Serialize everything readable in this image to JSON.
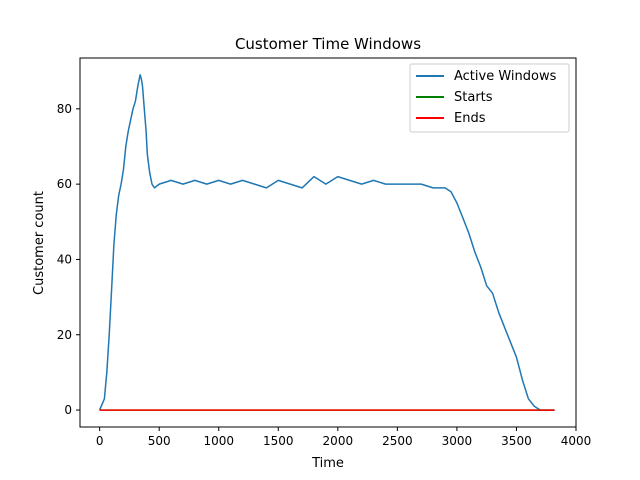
{
  "chart_data": {
    "type": "line",
    "title": "Customer Time Windows",
    "xlabel": "Time",
    "ylabel": "Customer count",
    "xlim": [
      -165,
      4000
    ],
    "ylim": [
      -4.5,
      93.5
    ],
    "xticks": [
      0,
      500,
      1000,
      1500,
      2000,
      2500,
      3000,
      3500,
      4000
    ],
    "yticks": [
      0,
      20,
      40,
      60,
      80
    ],
    "grid": false,
    "legend_position": "top-right",
    "series": [
      {
        "name": "Active Windows",
        "color": "#1f77b4",
        "x": [
          0,
          40,
          60,
          80,
          100,
          120,
          140,
          160,
          180,
          200,
          220,
          240,
          260,
          280,
          300,
          320,
          340,
          350,
          360,
          370,
          380,
          390,
          400,
          420,
          440,
          460,
          500,
          600,
          700,
          800,
          900,
          1000,
          1100,
          1200,
          1300,
          1400,
          1500,
          1600,
          1700,
          1800,
          1900,
          2000,
          2100,
          2200,
          2300,
          2400,
          2500,
          2600,
          2700,
          2800,
          2900,
          2950,
          3000,
          3050,
          3100,
          3150,
          3200,
          3250,
          3300,
          3350,
          3400,
          3450,
          3500,
          3550,
          3600,
          3650,
          3700,
          3820
        ],
        "y": [
          0,
          3,
          10,
          20,
          32,
          44,
          52,
          57,
          60,
          64,
          70,
          74,
          77,
          80,
          82,
          86,
          89,
          88,
          86,
          82,
          78,
          74,
          68,
          63,
          60,
          59,
          60,
          61,
          60,
          61,
          60,
          61,
          60,
          61,
          60,
          59,
          61,
          60,
          59,
          62,
          60,
          62,
          61,
          60,
          61,
          60,
          60,
          60,
          60,
          59,
          59,
          58,
          55,
          51,
          47,
          42,
          38,
          33,
          31,
          26,
          22,
          18,
          14,
          8,
          3,
          1,
          0,
          0
        ]
      },
      {
        "name": "Starts",
        "color": "#008000",
        "x": [
          0,
          3820
        ],
        "y": [
          0,
          0
        ]
      },
      {
        "name": "Ends",
        "color": "#ff0000",
        "x": [
          0,
          3820
        ],
        "y": [
          0,
          0
        ]
      }
    ]
  }
}
